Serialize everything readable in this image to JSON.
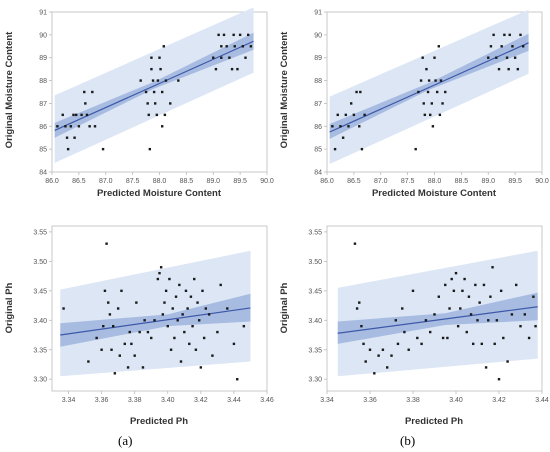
{
  "labels": {
    "left": "(a)",
    "right": "(b)"
  },
  "colors": {
    "band": "#dce6f5",
    "band_inner": "#9fb4de",
    "line": "#3d58a8",
    "point": "#1a1a1a",
    "axis": "#bbbbbb"
  },
  "chart_data": [
    {
      "type": "scatter",
      "xlabel": "Predicted Moisture Content",
      "ylabel": "Original Moisture Content",
      "xlim": [
        86.0,
        90.0
      ],
      "ylim": [
        84,
        91
      ],
      "xticks": [
        "86.0",
        "86.5",
        "87.0",
        "87.5",
        "88.0",
        "88.5",
        "89.0",
        "89.5",
        "90.0"
      ],
      "yticks": [
        "84",
        "85",
        "86",
        "87",
        "88",
        "89",
        "90",
        "91"
      ],
      "fit": [
        [
          86.05,
          85.82
        ],
        [
          89.75,
          89.72
        ]
      ],
      "ci": [
        [
          86.05,
          85.5,
          86.15
        ],
        [
          87.9,
          87.65,
          87.95
        ],
        [
          89.75,
          89.35,
          90.1
        ]
      ],
      "pi": [
        [
          86.05,
          84.4,
          87.35
        ],
        [
          89.75,
          88.35,
          91.2
        ]
      ],
      "points": [
        [
          86.1,
          86.0
        ],
        [
          86.2,
          86.5
        ],
        [
          86.25,
          86.0
        ],
        [
          86.28,
          85.5
        ],
        [
          86.3,
          85.0
        ],
        [
          86.35,
          86.0
        ],
        [
          86.4,
          86.5
        ],
        [
          86.42,
          85.5
        ],
        [
          86.45,
          86.5
        ],
        [
          86.5,
          86.0
        ],
        [
          86.55,
          86.5
        ],
        [
          86.6,
          87.5
        ],
        [
          86.62,
          87.0
        ],
        [
          86.65,
          86.5
        ],
        [
          86.7,
          86.0
        ],
        [
          86.75,
          87.5
        ],
        [
          86.8,
          86.0
        ],
        [
          86.95,
          85.0
        ],
        [
          87.65,
          88.0
        ],
        [
          87.75,
          87.5
        ],
        [
          87.78,
          87.0
        ],
        [
          87.8,
          86.5
        ],
        [
          87.82,
          85.0
        ],
        [
          87.85,
          89.0
        ],
        [
          87.85,
          88.5
        ],
        [
          87.88,
          88.0
        ],
        [
          87.9,
          87.5
        ],
        [
          87.92,
          87.0
        ],
        [
          87.95,
          86.5
        ],
        [
          87.97,
          88.0
        ],
        [
          88.0,
          89.0
        ],
        [
          88.02,
          88.5
        ],
        [
          88.05,
          87.5
        ],
        [
          88.05,
          86.0
        ],
        [
          88.08,
          89.5
        ],
        [
          88.1,
          86.5
        ],
        [
          88.12,
          88.0
        ],
        [
          88.2,
          87.0
        ],
        [
          88.35,
          88.0
        ],
        [
          89.0,
          89.0
        ],
        [
          89.05,
          88.5
        ],
        [
          89.1,
          90.0
        ],
        [
          89.15,
          89.5
        ],
        [
          89.15,
          89.0
        ],
        [
          89.2,
          90.0
        ],
        [
          89.25,
          89.5
        ],
        [
          89.3,
          89.0
        ],
        [
          89.35,
          88.5
        ],
        [
          89.38,
          90.0
        ],
        [
          89.4,
          89.5
        ],
        [
          89.45,
          88.5
        ],
        [
          89.5,
          90.0
        ],
        [
          89.55,
          89.5
        ],
        [
          89.6,
          89.0
        ],
        [
          89.65,
          90.0
        ],
        [
          89.7,
          89.5
        ]
      ]
    },
    {
      "type": "scatter",
      "xlabel": "Predicted Moisture Content",
      "ylabel": "Original Moisture Content",
      "xlim": [
        86.0,
        90.0
      ],
      "ylim": [
        84,
        91
      ],
      "xticks": [
        "86.0",
        "86.5",
        "87.0",
        "87.5",
        "88.0",
        "88.5",
        "89.0",
        "89.5",
        "90.0"
      ],
      "yticks": [
        "84",
        "85",
        "86",
        "87",
        "88",
        "89",
        "90",
        "91"
      ],
      "fit": [
        [
          86.05,
          85.75
        ],
        [
          89.75,
          89.65
        ]
      ],
      "ci": [
        [
          86.05,
          85.45,
          86.1
        ],
        [
          87.9,
          87.6,
          87.9
        ],
        [
          89.75,
          89.3,
          90.05
        ]
      ],
      "pi": [
        [
          86.05,
          84.35,
          87.3
        ],
        [
          89.75,
          88.3,
          91.1
        ]
      ],
      "points": [
        [
          86.1,
          86.0
        ],
        [
          86.15,
          85.0
        ],
        [
          86.2,
          86.5
        ],
        [
          86.25,
          86.0
        ],
        [
          86.3,
          85.5
        ],
        [
          86.35,
          86.5
        ],
        [
          86.4,
          86.0
        ],
        [
          86.45,
          87.0
        ],
        [
          86.5,
          86.5
        ],
        [
          86.55,
          87.5
        ],
        [
          86.6,
          86.0
        ],
        [
          86.62,
          87.5
        ],
        [
          86.65,
          85.0
        ],
        [
          86.7,
          86.5
        ],
        [
          87.65,
          85.0
        ],
        [
          87.7,
          87.5
        ],
        [
          87.75,
          88.0
        ],
        [
          87.78,
          89.0
        ],
        [
          87.8,
          87.0
        ],
        [
          87.82,
          86.5
        ],
        [
          87.85,
          88.5
        ],
        [
          87.88,
          87.5
        ],
        [
          87.9,
          88.0
        ],
        [
          87.92,
          86.5
        ],
        [
          87.95,
          87.0
        ],
        [
          87.97,
          86.0
        ],
        [
          88.0,
          89.0
        ],
        [
          88.02,
          88.0
        ],
        [
          88.05,
          87.5
        ],
        [
          88.08,
          89.5
        ],
        [
          88.1,
          86.5
        ],
        [
          88.12,
          88.0
        ],
        [
          88.15,
          87.0
        ],
        [
          88.2,
          87.5
        ],
        [
          89.0,
          89.0
        ],
        [
          89.05,
          89.5
        ],
        [
          89.1,
          90.0
        ],
        [
          89.15,
          89.0
        ],
        [
          89.2,
          88.5
        ],
        [
          89.25,
          89.5
        ],
        [
          89.3,
          90.0
        ],
        [
          89.35,
          89.0
        ],
        [
          89.38,
          88.5
        ],
        [
          89.4,
          90.0
        ],
        [
          89.45,
          89.5
        ],
        [
          89.5,
          89.0
        ],
        [
          89.55,
          88.5
        ],
        [
          89.6,
          90.0
        ],
        [
          89.65,
          89.5
        ]
      ]
    },
    {
      "type": "scatter",
      "xlabel": "Predicted Ph",
      "ylabel": "Original Ph",
      "xlim": [
        3.33,
        3.46
      ],
      "ylim": [
        3.28,
        3.56
      ],
      "xticks": [
        "3.34",
        "3.36",
        "3.38",
        "3.40",
        "3.42",
        "3.44",
        "3.46"
      ],
      "yticks": [
        "3.30",
        "3.35",
        "3.40",
        "3.45",
        "3.50",
        "3.55"
      ],
      "fit": [
        [
          3.335,
          3.375
        ],
        [
          3.45,
          3.421
        ]
      ],
      "ci": [
        [
          3.335,
          3.355,
          3.395
        ],
        [
          3.4,
          3.39,
          3.41
        ],
        [
          3.45,
          3.398,
          3.445
        ]
      ],
      "pi": [
        [
          3.335,
          3.305,
          3.452
        ],
        [
          3.45,
          3.33,
          3.518
        ]
      ],
      "points": [
        [
          3.337,
          3.42
        ],
        [
          3.352,
          3.33
        ],
        [
          3.357,
          3.37
        ],
        [
          3.36,
          3.35
        ],
        [
          3.361,
          3.39
        ],
        [
          3.362,
          3.45
        ],
        [
          3.363,
          3.53
        ],
        [
          3.364,
          3.43
        ],
        [
          3.365,
          3.41
        ],
        [
          3.366,
          3.35
        ],
        [
          3.367,
          3.39
        ],
        [
          3.368,
          3.31
        ],
        [
          3.37,
          3.42
        ],
        [
          3.371,
          3.34
        ],
        [
          3.372,
          3.45
        ],
        [
          3.374,
          3.36
        ],
        [
          3.376,
          3.32
        ],
        [
          3.377,
          3.38
        ],
        [
          3.378,
          3.36
        ],
        [
          3.38,
          3.34
        ],
        [
          3.381,
          3.43
        ],
        [
          3.383,
          3.38
        ],
        [
          3.385,
          3.32
        ],
        [
          3.386,
          3.4
        ],
        [
          3.388,
          3.38
        ],
        [
          3.39,
          3.37
        ],
        [
          3.392,
          3.4
        ],
        [
          3.394,
          3.47
        ],
        [
          3.395,
          3.48
        ],
        [
          3.396,
          3.49
        ],
        [
          3.397,
          3.41
        ],
        [
          3.398,
          3.43
        ],
        [
          3.399,
          3.45
        ],
        [
          3.4,
          3.39
        ],
        [
          3.401,
          3.47
        ],
        [
          3.402,
          3.35
        ],
        [
          3.403,
          3.42
        ],
        [
          3.404,
          3.37
        ],
        [
          3.405,
          3.44
        ],
        [
          3.406,
          3.4
        ],
        [
          3.407,
          3.46
        ],
        [
          3.408,
          3.33
        ],
        [
          3.409,
          3.41
        ],
        [
          3.41,
          3.38
        ],
        [
          3.411,
          3.45
        ],
        [
          3.412,
          3.42
        ],
        [
          3.413,
          3.36
        ],
        [
          3.414,
          3.44
        ],
        [
          3.415,
          3.39
        ],
        [
          3.416,
          3.47
        ],
        [
          3.417,
          3.35
        ],
        [
          3.418,
          3.43
        ],
        [
          3.419,
          3.4
        ],
        [
          3.42,
          3.32
        ],
        [
          3.421,
          3.45
        ],
        [
          3.422,
          3.37
        ],
        [
          3.423,
          3.42
        ],
        [
          3.425,
          3.41
        ],
        [
          3.427,
          3.34
        ],
        [
          3.43,
          3.38
        ],
        [
          3.432,
          3.46
        ],
        [
          3.436,
          3.42
        ],
        [
          3.44,
          3.36
        ],
        [
          3.442,
          3.3
        ],
        [
          3.446,
          3.39
        ]
      ]
    },
    {
      "type": "scatter",
      "xlabel": "Predicted Ph",
      "ylabel": "Original Ph",
      "xlim": [
        3.34,
        3.44
      ],
      "ylim": [
        3.28,
        3.56
      ],
      "xticks": [
        "3.34",
        "3.36",
        "3.38",
        "3.40",
        "3.42",
        "3.44"
      ],
      "yticks": [
        "3.30",
        "3.35",
        "3.40",
        "3.45",
        "3.50",
        "3.55"
      ],
      "fit": [
        [
          3.345,
          3.378
        ],
        [
          3.438,
          3.423
        ]
      ],
      "ci": [
        [
          3.345,
          3.36,
          3.398
        ],
        [
          3.395,
          3.392,
          3.412
        ],
        [
          3.438,
          3.4,
          3.447
        ]
      ],
      "pi": [
        [
          3.345,
          3.305,
          3.455
        ],
        [
          3.438,
          3.335,
          3.518
        ]
      ],
      "points": [
        [
          3.353,
          3.53
        ],
        [
          3.354,
          3.42
        ],
        [
          3.355,
          3.43
        ],
        [
          3.356,
          3.39
        ],
        [
          3.357,
          3.36
        ],
        [
          3.358,
          3.33
        ],
        [
          3.36,
          3.35
        ],
        [
          3.362,
          3.31
        ],
        [
          3.364,
          3.34
        ],
        [
          3.366,
          3.35
        ],
        [
          3.368,
          3.32
        ],
        [
          3.37,
          3.34
        ],
        [
          3.372,
          3.4
        ],
        [
          3.373,
          3.36
        ],
        [
          3.375,
          3.42
        ],
        [
          3.376,
          3.38
        ],
        [
          3.378,
          3.35
        ],
        [
          3.38,
          3.45
        ],
        [
          3.382,
          3.37
        ],
        [
          3.384,
          3.36
        ],
        [
          3.386,
          3.4
        ],
        [
          3.388,
          3.38
        ],
        [
          3.39,
          3.41
        ],
        [
          3.392,
          3.44
        ],
        [
          3.394,
          3.37
        ],
        [
          3.395,
          3.46
        ],
        [
          3.396,
          3.37
        ],
        [
          3.397,
          3.42
        ],
        [
          3.398,
          3.47
        ],
        [
          3.399,
          3.45
        ],
        [
          3.4,
          3.48
        ],
        [
          3.401,
          3.39
        ],
        [
          3.402,
          3.42
        ],
        [
          3.403,
          3.45
        ],
        [
          3.404,
          3.47
        ],
        [
          3.405,
          3.38
        ],
        [
          3.406,
          3.44
        ],
        [
          3.407,
          3.41
        ],
        [
          3.408,
          3.36
        ],
        [
          3.409,
          3.46
        ],
        [
          3.41,
          3.4
        ],
        [
          3.411,
          3.43
        ],
        [
          3.412,
          3.36
        ],
        [
          3.413,
          3.46
        ],
        [
          3.414,
          3.32
        ],
        [
          3.415,
          3.4
        ],
        [
          3.416,
          3.44
        ],
        [
          3.417,
          3.49
        ],
        [
          3.418,
          3.36
        ],
        [
          3.419,
          3.4
        ],
        [
          3.42,
          3.3
        ],
        [
          3.421,
          3.45
        ],
        [
          3.422,
          3.37
        ],
        [
          3.424,
          3.33
        ],
        [
          3.426,
          3.41
        ],
        [
          3.428,
          3.46
        ],
        [
          3.43,
          3.39
        ],
        [
          3.432,
          3.41
        ],
        [
          3.434,
          3.37
        ],
        [
          3.436,
          3.44
        ],
        [
          3.437,
          3.39
        ]
      ]
    }
  ]
}
